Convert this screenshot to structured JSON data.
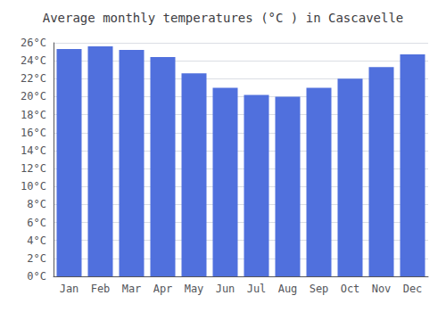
{
  "chart_data": {
    "type": "bar",
    "title": "Average monthly temperatures (°C ) in Cascavelle",
    "categories": [
      "Jan",
      "Feb",
      "Mar",
      "Apr",
      "May",
      "Jun",
      "Jul",
      "Aug",
      "Sep",
      "Oct",
      "Nov",
      "Dec"
    ],
    "values": [
      25.3,
      25.6,
      25.2,
      24.4,
      22.6,
      21.0,
      20.2,
      20.0,
      21.0,
      22.0,
      23.3,
      24.7
    ],
    "ylim": [
      0,
      26
    ],
    "yticks": [
      {
        "value": 0,
        "label": "0°C"
      },
      {
        "value": 2,
        "label": "2°C"
      },
      {
        "value": 4,
        "label": "4°C"
      },
      {
        "value": 6,
        "label": "6°C"
      },
      {
        "value": 8,
        "label": "8°C"
      },
      {
        "value": 10,
        "label": "10°C"
      },
      {
        "value": 12,
        "label": "12°C"
      },
      {
        "value": 14,
        "label": "14°C"
      },
      {
        "value": 16,
        "label": "16°C"
      },
      {
        "value": 18,
        "label": "18°C"
      },
      {
        "value": 20,
        "label": "20°C"
      },
      {
        "value": 22,
        "label": "22°C"
      },
      {
        "value": 24,
        "label": "24°C"
      },
      {
        "value": 26,
        "label": "26°C"
      }
    ],
    "grid": true
  }
}
